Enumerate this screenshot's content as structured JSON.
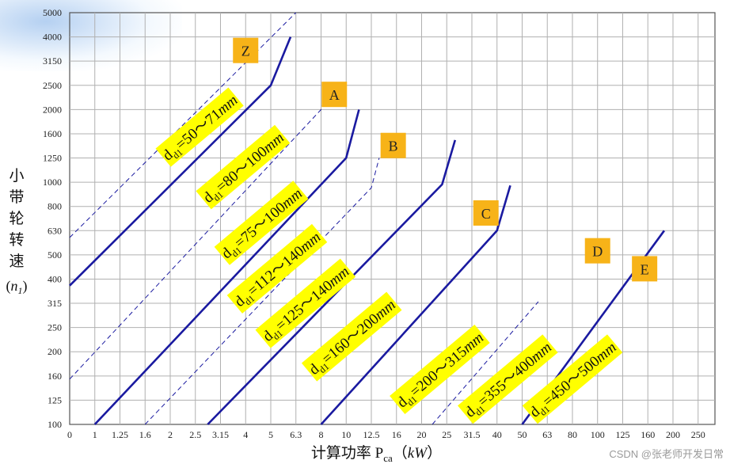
{
  "chart_data": {
    "type": "line",
    "title": "",
    "xlabel": {
      "main": "计算功率 P",
      "sub": "ca",
      "unit_open": "（",
      "unit": "kW",
      "unit_close": "）"
    },
    "ylabel": {
      "chars": [
        "小",
        "带",
        "轮",
        "转",
        "速"
      ],
      "symbol": "n",
      "symbol_sub": "1"
    },
    "x_ticks": [
      "0",
      "1",
      "1.25",
      "1.6",
      "2",
      "2.5",
      "3.15",
      "4",
      "5",
      "6.3",
      "8",
      "10",
      "12.5",
      "16",
      "20",
      "25",
      "31.5",
      "40",
      "50",
      "63",
      "80",
      "100",
      "125",
      "160",
      "200",
      "250"
    ],
    "y_ticks": [
      "100",
      "125",
      "160",
      "200",
      "250",
      "315",
      "400",
      "500",
      "630",
      "800",
      "1000",
      "1250",
      "1600",
      "2000",
      "2500",
      "3150",
      "4000",
      "5000"
    ],
    "series": [
      {
        "name": "Z",
        "style": "dashed",
        "points": [
          [
            0,
            590
          ],
          [
            6.3,
            5000
          ]
        ]
      },
      {
        "name": "",
        "style": "solid",
        "points": [
          [
            0,
            375
          ],
          [
            5.0,
            2500
          ],
          [
            6.0,
            4000
          ]
        ]
      },
      {
        "name": "A",
        "style": "dashed",
        "points": [
          [
            0,
            155
          ],
          [
            8.0,
            2000
          ],
          [
            8.5,
            2500
          ]
        ]
      },
      {
        "name": "",
        "style": "solid",
        "points": [
          [
            1.0,
            100
          ],
          [
            10.0,
            1250
          ],
          [
            11.2,
            2000
          ]
        ]
      },
      {
        "name": "B",
        "style": "dashed",
        "points": [
          [
            1.6,
            100
          ],
          [
            12.5,
            950
          ],
          [
            13.5,
            1250
          ]
        ]
      },
      {
        "name": "",
        "style": "solid",
        "points": [
          [
            2.8,
            100
          ],
          [
            24.0,
            980
          ],
          [
            27.0,
            1500
          ]
        ]
      },
      {
        "name": "C",
        "style": "solid",
        "points": [
          [
            8.0,
            100
          ],
          [
            40.0,
            630
          ],
          [
            45.0,
            970
          ]
        ]
      },
      {
        "name": "D",
        "style": "dashed",
        "points": [
          [
            22.0,
            100
          ],
          [
            58.0,
            320
          ]
        ]
      },
      {
        "name": "E",
        "style": "solid",
        "points": [
          [
            50.0,
            100
          ],
          [
            185.0,
            630
          ]
        ]
      }
    ],
    "belt_labels": [
      {
        "name": "Z",
        "x": 4.0,
        "y": 3500
      },
      {
        "name": "A",
        "x": 9.0,
        "y": 2300
      },
      {
        "name": "B",
        "x": 15.5,
        "y": 1420
      },
      {
        "name": "C",
        "x": 36.0,
        "y": 750
      },
      {
        "name": "D",
        "x": 100.0,
        "y": 520
      },
      {
        "name": "E",
        "x": 155.0,
        "y": 440
      }
    ],
    "diameter_labels": [
      {
        "prefix": "d",
        "sub": "d1",
        "range": "=50～71",
        "unit": "mm",
        "x": 2.6,
        "y": 1700
      },
      {
        "prefix": "d",
        "sub": "d1",
        "range": "=80～100",
        "unit": "mm",
        "x": 3.9,
        "y": 1150
      },
      {
        "prefix": "d",
        "sub": "d1",
        "range": "=75～100",
        "unit": "mm",
        "x": 4.6,
        "y": 680
      },
      {
        "prefix": "d",
        "sub": "d1",
        "range": "=112～140",
        "unit": "mm",
        "x": 5.3,
        "y": 440
      },
      {
        "prefix": "d",
        "sub": "d1",
        "range": "=125～140",
        "unit": "mm",
        "x": 6.9,
        "y": 315
      },
      {
        "prefix": "d",
        "sub": "d1",
        "range": "=160～200",
        "unit": "mm",
        "x": 10.5,
        "y": 230
      },
      {
        "prefix": "d",
        "sub": "d1",
        "range": "=200～315",
        "unit": "mm",
        "x": 23.5,
        "y": 170
      },
      {
        "prefix": "d",
        "sub": "d1",
        "range": "=355～400",
        "unit": "mm",
        "x": 44.0,
        "y": 155
      },
      {
        "prefix": "d",
        "sub": "d1",
        "range": "=450～500",
        "unit": "mm",
        "x": 80.0,
        "y": 155
      }
    ],
    "grid": true,
    "colors": {
      "line": "#1a1aa0",
      "diameter_box": "#ffff00",
      "belt_box": "#f7b318",
      "grid": "#b0b0b0"
    }
  },
  "watermark": "CSDN @张老师开发日常"
}
